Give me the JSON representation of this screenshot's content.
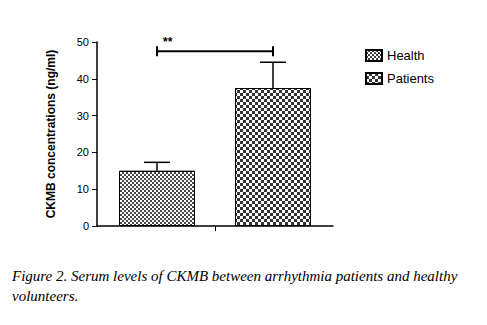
{
  "chart_data": {
    "type": "bar",
    "y_label": "CKMB concentrations (ng/ml)",
    "categories": [
      null
    ],
    "series": [
      {
        "name": "Health",
        "color": "#ffffff",
        "values": [
          15
        ],
        "error": [
          2.3
        ]
      },
      {
        "name": "Patients",
        "color": "#ffffff",
        "values": [
          37.5
        ],
        "error": [
          7
        ]
      }
    ],
    "annotations": [
      {
        "text": "**",
        "between": [
          "Health",
          "Patients"
        ]
      }
    ],
    "ylim": [
      0,
      50
    ],
    "yticks": [
      0,
      10,
      20,
      30,
      40,
      50
    ],
    "grid": false,
    "legend": "right",
    "caption": "Figure 2. Serum levels of CKMB between arrhythmia patients and healthy volunteers."
  }
}
